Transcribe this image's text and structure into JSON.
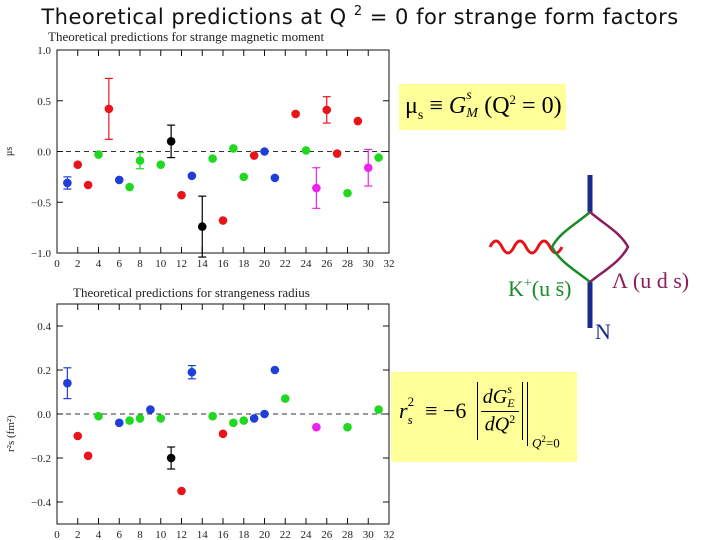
{
  "slide": {
    "title_pre": "Theoretical predictions at Q",
    "title_exp": "2",
    "title_post": " = 0 for strange form factors"
  },
  "colors": {
    "red": "#e8141a",
    "blue": "#1f3fd8",
    "green": "#1fd81f",
    "black": "#000000",
    "magenta": "#ee22ee",
    "formula_bg": "#ffff99",
    "diagram_wavy": "#e8141a",
    "diagram_line": "#1a2a8c",
    "diagram_green": "#1a8a2a",
    "diagram_purple": "#8a1f5a"
  },
  "chart_data": [
    {
      "type": "scatter",
      "title": "Theoretical predictions for strange magnetic moment",
      "ylabel": "μs",
      "xlim": [
        0,
        32
      ],
      "ylim": [
        -1.0,
        1.0
      ],
      "xticks": [
        0,
        2,
        4,
        6,
        8,
        10,
        12,
        14,
        16,
        18,
        20,
        22,
        24,
        26,
        28,
        30,
        32
      ],
      "yticks": [
        1.0,
        0.5,
        0.0,
        -0.5,
        -1.0
      ],
      "ytick_labels": [
        "1.0",
        "0.5",
        "0.0",
        "−0.5",
        "−1.0"
      ],
      "reference_line": 0,
      "points": [
        {
          "x": 1,
          "y": -0.31,
          "color": "blue",
          "err": 0.06
        },
        {
          "x": 2,
          "y": -0.13,
          "color": "red"
        },
        {
          "x": 3,
          "y": -0.33,
          "color": "red"
        },
        {
          "x": 4,
          "y": -0.03,
          "color": "green"
        },
        {
          "x": 5,
          "y": 0.42,
          "color": "red",
          "err": 0.3
        },
        {
          "x": 6,
          "y": -0.28,
          "color": "blue"
        },
        {
          "x": 7,
          "y": -0.35,
          "color": "green"
        },
        {
          "x": 8,
          "y": -0.09,
          "color": "green",
          "err": 0.08
        },
        {
          "x": 10,
          "y": -0.13,
          "color": "green"
        },
        {
          "x": 11,
          "y": 0.1,
          "color": "black",
          "err": 0.16
        },
        {
          "x": 12,
          "y": -0.43,
          "color": "red"
        },
        {
          "x": 13,
          "y": -0.24,
          "color": "blue"
        },
        {
          "x": 14,
          "y": -0.74,
          "color": "black",
          "err": 0.3
        },
        {
          "x": 15,
          "y": -0.07,
          "color": "green"
        },
        {
          "x": 16,
          "y": -0.68,
          "color": "red"
        },
        {
          "x": 17,
          "y": 0.03,
          "color": "green"
        },
        {
          "x": 18,
          "y": -0.25,
          "color": "green"
        },
        {
          "x": 19,
          "y": -0.04,
          "color": "red"
        },
        {
          "x": 20,
          "y": 0.0,
          "color": "blue"
        },
        {
          "x": 21,
          "y": -0.26,
          "color": "blue"
        },
        {
          "x": 23,
          "y": 0.37,
          "color": "red"
        },
        {
          "x": 24,
          "y": 0.01,
          "color": "green"
        },
        {
          "x": 25,
          "y": -0.36,
          "color": "magenta",
          "err": 0.2
        },
        {
          "x": 26,
          "y": 0.41,
          "color": "red",
          "err": 0.13
        },
        {
          "x": 27,
          "y": -0.02,
          "color": "red"
        },
        {
          "x": 28,
          "y": -0.41,
          "color": "green"
        },
        {
          "x": 29,
          "y": 0.3,
          "color": "red"
        },
        {
          "x": 30,
          "y": -0.16,
          "color": "magenta",
          "err": 0.18
        },
        {
          "x": 31,
          "y": -0.06,
          "color": "green"
        }
      ]
    },
    {
      "type": "scatter",
      "title": "Theoretical predictions for strangeness radius",
      "ylabel": "r²s (fm²)",
      "xlim": [
        0,
        32
      ],
      "ylim": [
        -0.5,
        0.5
      ],
      "xticks": [
        0,
        2,
        4,
        6,
        8,
        10,
        12,
        14,
        16,
        18,
        20,
        22,
        24,
        26,
        28,
        30,
        32
      ],
      "yticks": [
        0.4,
        0.2,
        0.0,
        -0.2,
        -0.4
      ],
      "ytick_labels": [
        "0.4",
        "0.2",
        "0.0",
        "−0.2",
        "−0.4"
      ],
      "reference_line": 0,
      "points": [
        {
          "x": 1,
          "y": 0.14,
          "color": "blue",
          "err": 0.07
        },
        {
          "x": 2,
          "y": -0.1,
          "color": "red"
        },
        {
          "x": 3,
          "y": -0.19,
          "color": "red"
        },
        {
          "x": 4,
          "y": -0.01,
          "color": "green"
        },
        {
          "x": 6,
          "y": -0.04,
          "color": "blue"
        },
        {
          "x": 7,
          "y": -0.03,
          "color": "green"
        },
        {
          "x": 8,
          "y": -0.02,
          "color": "green"
        },
        {
          "x": 9,
          "y": 0.02,
          "color": "blue"
        },
        {
          "x": 10,
          "y": -0.02,
          "color": "green"
        },
        {
          "x": 11,
          "y": -0.2,
          "color": "black",
          "err": 0.05
        },
        {
          "x": 12,
          "y": -0.35,
          "color": "red"
        },
        {
          "x": 13,
          "y": 0.19,
          "color": "blue",
          "err": 0.03
        },
        {
          "x": 15,
          "y": -0.01,
          "color": "green"
        },
        {
          "x": 16,
          "y": -0.09,
          "color": "red"
        },
        {
          "x": 17,
          "y": -0.04,
          "color": "green"
        },
        {
          "x": 18,
          "y": -0.03,
          "color": "green"
        },
        {
          "x": 19,
          "y": -0.02,
          "color": "blue"
        },
        {
          "x": 20,
          "y": 0.0,
          "color": "blue"
        },
        {
          "x": 21,
          "y": 0.2,
          "color": "blue"
        },
        {
          "x": 22,
          "y": 0.07,
          "color": "green"
        },
        {
          "x": 25,
          "y": -0.06,
          "color": "magenta"
        },
        {
          "x": 28,
          "y": -0.06,
          "color": "green"
        },
        {
          "x": 31,
          "y": 0.02,
          "color": "green"
        }
      ]
    }
  ],
  "formula_top": {
    "mu": "μ",
    "mu_sub": "s",
    "equiv": "≡",
    "G": "G",
    "G_sup": "s",
    "G_sub": "M",
    "arg_open": "(Q",
    "arg_sup": "2",
    "arg_close": " = 0)"
  },
  "formula_bottom": {
    "r": "r",
    "r_sub": "s",
    "r_sup": "2",
    "equiv": "≡ −6",
    "num_dG": "dG",
    "num_sup": "s",
    "num_sub": "E",
    "den": "dQ",
    "den_sup": "2",
    "eval_at": "Q",
    "eval_sup": "2",
    "eval_rest": "=0"
  },
  "diagram": {
    "kaon_label": "K",
    "kaon_sup": "+",
    "kaon_quarks": "(u s̄)",
    "lambda_label": "Λ (u d s)",
    "nucleon_label": "N"
  }
}
